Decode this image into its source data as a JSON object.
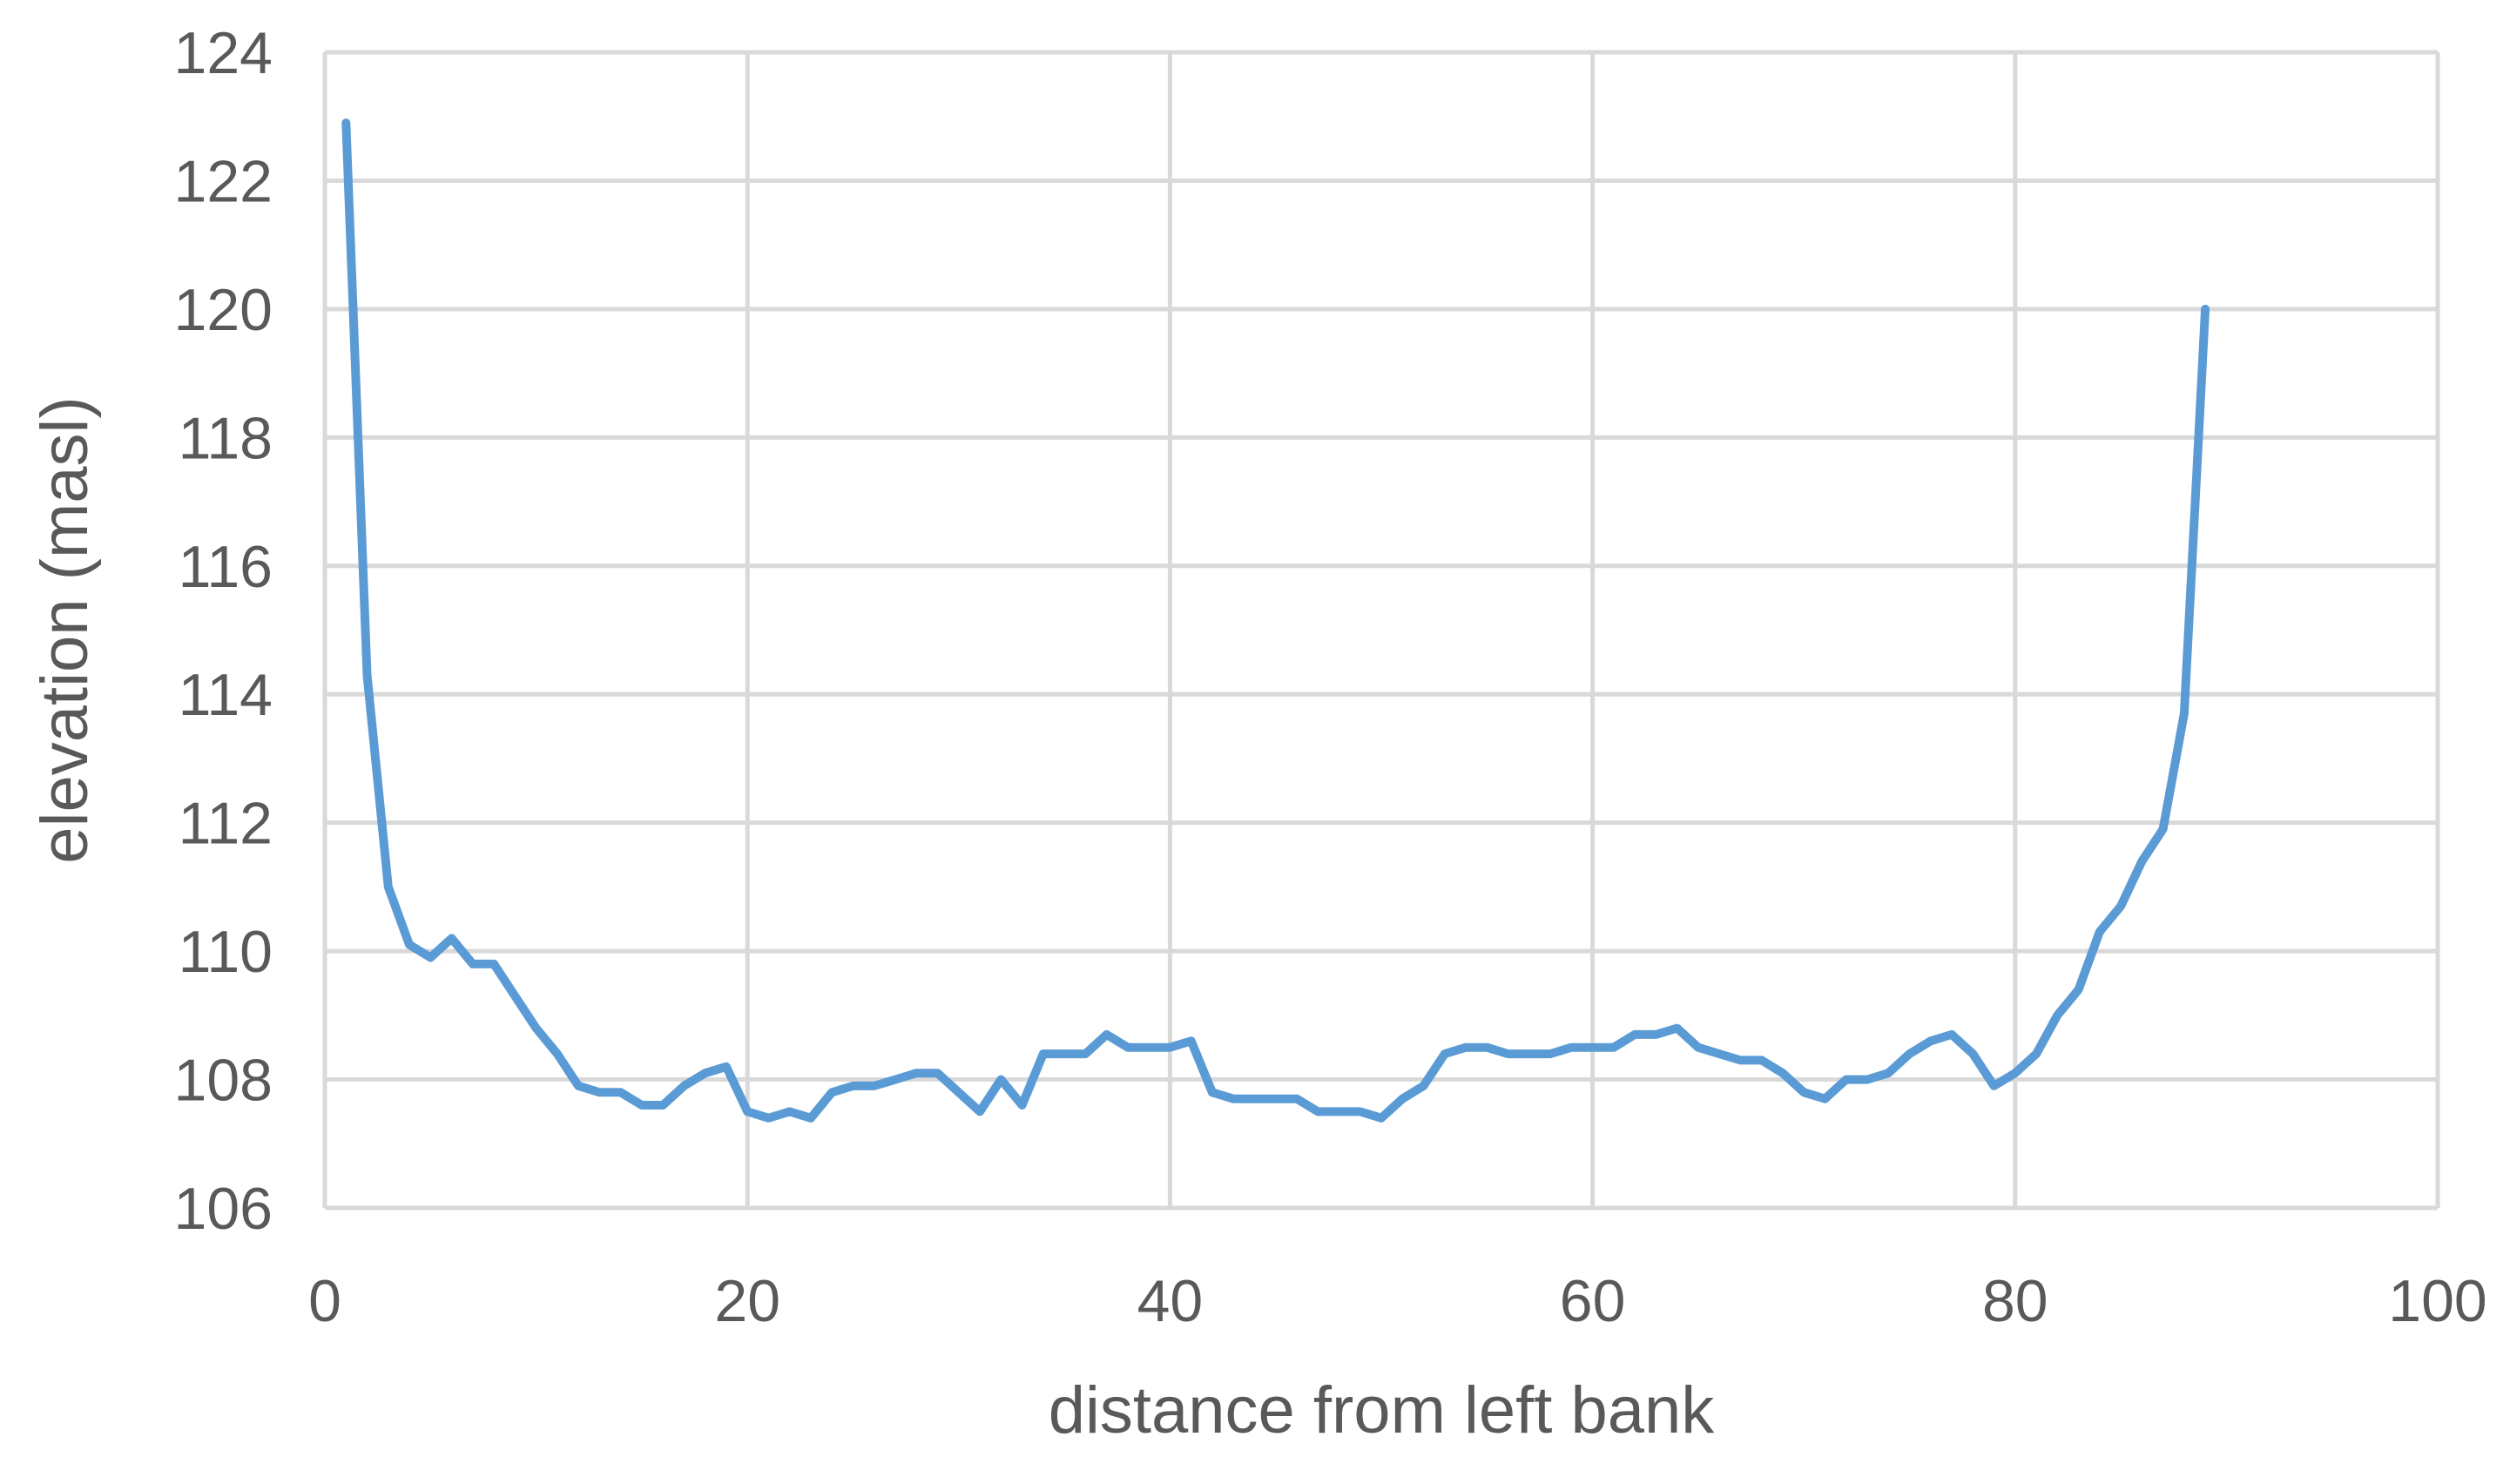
{
  "chart_data": {
    "type": "line",
    "title": "",
    "xlabel": "distance from left bank",
    "ylabel": "elevation (masl)",
    "xlim": [
      0,
      100
    ],
    "ylim": [
      106,
      124
    ],
    "x_ticks": [
      0,
      20,
      40,
      60,
      80,
      100
    ],
    "y_ticks": [
      106,
      108,
      110,
      112,
      114,
      116,
      118,
      120,
      122,
      124
    ],
    "grid": true,
    "legend": "none",
    "colors": {
      "line": "#5b9bd5",
      "grid": "#d9d9d9",
      "text": "#595959"
    },
    "series": [
      {
        "x": [
          1,
          2,
          3,
          4,
          5,
          6,
          7,
          8,
          9,
          10,
          11,
          12,
          13,
          14,
          15,
          16,
          17,
          18,
          19,
          20,
          21,
          22,
          23,
          24,
          25,
          26,
          27,
          28,
          29,
          30,
          31,
          32,
          33,
          34,
          35,
          36,
          37,
          38,
          39,
          40,
          41,
          42,
          43,
          44,
          45,
          46,
          47,
          48,
          49,
          50,
          51,
          52,
          53,
          54,
          55,
          56,
          57,
          58,
          59,
          60,
          61,
          62,
          63,
          64,
          65,
          66,
          67,
          68,
          69,
          70,
          71,
          72,
          73,
          74,
          75,
          76,
          77,
          78,
          79,
          80,
          81,
          82,
          83,
          84,
          85,
          86,
          87,
          88,
          89
        ],
        "y": [
          122.9,
          114.3,
          111.0,
          110.1,
          109.9,
          110.2,
          109.8,
          109.8,
          109.3,
          108.8,
          108.4,
          107.9,
          107.8,
          107.8,
          107.6,
          107.6,
          107.9,
          108.1,
          108.2,
          107.5,
          107.4,
          107.5,
          107.4,
          107.8,
          107.9,
          107.9,
          108.0,
          108.1,
          108.1,
          107.8,
          107.5,
          108.0,
          107.6,
          108.4,
          108.4,
          108.4,
          108.7,
          108.5,
          108.5,
          108.5,
          108.6,
          107.8,
          107.7,
          107.7,
          107.7,
          107.7,
          107.5,
          107.5,
          107.5,
          107.4,
          107.7,
          107.9,
          108.4,
          108.5,
          108.5,
          108.4,
          108.4,
          108.4,
          108.5,
          108.5,
          108.5,
          108.7,
          108.7,
          108.8,
          108.5,
          108.4,
          108.3,
          108.3,
          108.1,
          107.8,
          107.7,
          108.0,
          108.0,
          108.1,
          108.4,
          108.6,
          108.7,
          108.4,
          107.9,
          108.1,
          108.4,
          109.0,
          109.4,
          110.3,
          110.7,
          111.4,
          111.9,
          113.7,
          120.0
        ]
      }
    ]
  }
}
